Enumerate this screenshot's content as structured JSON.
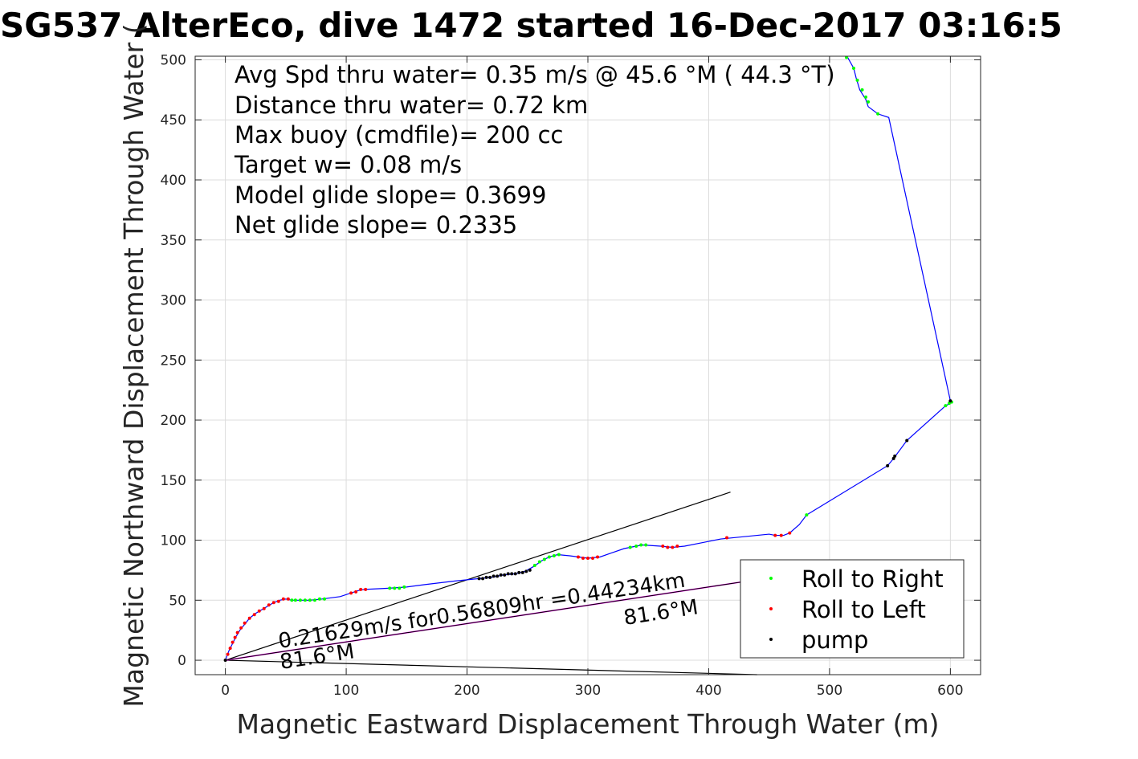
{
  "chart_data": {
    "type": "scatter",
    "title": "SG537 AlterEco, dive 1472 started 16-Dec-2017 03:16:5",
    "xlabel": "Magnetic Eastward Displacement Through Water (m)",
    "ylabel": "Magnetic Northward Displacement Through Water (",
    "xlim": [
      -25,
      625
    ],
    "ylim": [
      -12,
      503
    ],
    "xticks": [
      0,
      100,
      200,
      300,
      400,
      500,
      600
    ],
    "yticks": [
      0,
      50,
      100,
      150,
      200,
      250,
      300,
      350,
      400,
      450,
      500
    ],
    "grid": true,
    "legend_position": "lower-right",
    "annotations": [
      "Avg Spd thru water=  0.35 m/s @  45.6 °M ( 44.3 °T)",
      "Distance thru water=  0.72 km",
      "Max buoy (cmdfile)= 200 cc",
      "Target w= 0.08 m/s",
      "Model glide slope= 0.3699",
      "Net glide slope= 0.2335"
    ],
    "vector_label": "0.21629m/s for0.56809hr =0.44234km",
    "vector_heading_label_start": "81.6°M",
    "vector_heading_label_end": "81.6°M",
    "track": {
      "name": "track",
      "color": "#0000ff",
      "points": [
        [
          0,
          0
        ],
        [
          3,
          8
        ],
        [
          6,
          14
        ],
        [
          9,
          20
        ],
        [
          12,
          25
        ],
        [
          16,
          30
        ],
        [
          20,
          35
        ],
        [
          25,
          39
        ],
        [
          30,
          42
        ],
        [
          35,
          45
        ],
        [
          40,
          48
        ],
        [
          45,
          50
        ],
        [
          50,
          51
        ],
        [
          55,
          50
        ],
        [
          62,
          50
        ],
        [
          70,
          50
        ],
        [
          80,
          51
        ],
        [
          95,
          53
        ],
        [
          110,
          58
        ],
        [
          115,
          59
        ],
        [
          135,
          60
        ],
        [
          150,
          61
        ],
        [
          165,
          63
        ],
        [
          190,
          66
        ],
        [
          210,
          68
        ],
        [
          220,
          69
        ],
        [
          230,
          71
        ],
        [
          240,
          72
        ],
        [
          248,
          74
        ],
        [
          255,
          78
        ],
        [
          262,
          83
        ],
        [
          268,
          86
        ],
        [
          275,
          88
        ],
        [
          285,
          87
        ],
        [
          300,
          85
        ],
        [
          310,
          86
        ],
        [
          330,
          93
        ],
        [
          345,
          96
        ],
        [
          360,
          95
        ],
        [
          370,
          94
        ],
        [
          380,
          95
        ],
        [
          395,
          98
        ],
        [
          410,
          101
        ],
        [
          420,
          102
        ],
        [
          440,
          104
        ],
        [
          450,
          105
        ],
        [
          455,
          104
        ],
        [
          462,
          104
        ],
        [
          467,
          106
        ],
        [
          475,
          113
        ],
        [
          481,
          121
        ],
        [
          548,
          162
        ],
        [
          553,
          168
        ],
        [
          564,
          183
        ],
        [
          595,
          211
        ],
        [
          601,
          215
        ],
        [
          600,
          216
        ],
        [
          549,
          452
        ],
        [
          540,
          455
        ],
        [
          532,
          461
        ],
        [
          530,
          467
        ],
        [
          525,
          475
        ],
        [
          522,
          485
        ],
        [
          520,
          493
        ],
        [
          515,
          502
        ],
        [
          514,
          503
        ]
      ]
    },
    "commanded_vector": {
      "color": "#ff00ff",
      "x1": 0,
      "y1": 0,
      "x2": 426,
      "y2": 65
    },
    "actual_vector": {
      "color": "#000000",
      "x1": 0,
      "y1": 0,
      "x2": 426,
      "y2": 65
    },
    "upper_line": {
      "color": "#000000",
      "x1": 0,
      "y1": 0,
      "x2": 418,
      "y2": 140
    },
    "lower_line": {
      "color": "#000000",
      "x1": 0,
      "y1": 0,
      "x2": 440,
      "y2": -12
    },
    "series": [
      {
        "name": "Roll to Right",
        "color": "#00ff00",
        "points": [
          [
            55,
            50
          ],
          [
            58,
            50
          ],
          [
            62,
            50
          ],
          [
            66,
            50
          ],
          [
            70,
            50
          ],
          [
            74,
            50
          ],
          [
            78,
            51
          ],
          [
            82,
            51
          ],
          [
            136,
            60
          ],
          [
            140,
            60
          ],
          [
            144,
            60
          ],
          [
            148,
            61
          ],
          [
            256,
            79
          ],
          [
            260,
            82
          ],
          [
            264,
            84
          ],
          [
            268,
            86
          ],
          [
            272,
            87
          ],
          [
            276,
            88
          ],
          [
            335,
            94
          ],
          [
            340,
            95
          ],
          [
            344,
            96
          ],
          [
            348,
            96
          ],
          [
            481,
            121
          ],
          [
            596,
            212
          ],
          [
            599,
            214
          ],
          [
            601,
            215
          ],
          [
            514,
            502
          ],
          [
            520,
            493
          ],
          [
            523,
            483
          ],
          [
            527,
            475
          ],
          [
            530,
            469
          ],
          [
            532,
            465
          ],
          [
            540,
            455
          ]
        ]
      },
      {
        "name": "Roll to Left",
        "color": "#ff0000",
        "points": [
          [
            2,
            5
          ],
          [
            4,
            10
          ],
          [
            6,
            15
          ],
          [
            8,
            19
          ],
          [
            10,
            23
          ],
          [
            13,
            27
          ],
          [
            16,
            31
          ],
          [
            20,
            35
          ],
          [
            24,
            38
          ],
          [
            28,
            41
          ],
          [
            32,
            43
          ],
          [
            36,
            46
          ],
          [
            40,
            48
          ],
          [
            44,
            49
          ],
          [
            48,
            51
          ],
          [
            52,
            51
          ],
          [
            104,
            56
          ],
          [
            108,
            57
          ],
          [
            112,
            59
          ],
          [
            116,
            59
          ],
          [
            292,
            86
          ],
          [
            296,
            85
          ],
          [
            300,
            85
          ],
          [
            304,
            85
          ],
          [
            308,
            86
          ],
          [
            362,
            95
          ],
          [
            366,
            94
          ],
          [
            370,
            94
          ],
          [
            374,
            95
          ],
          [
            415,
            102
          ],
          [
            455,
            104
          ],
          [
            460,
            104
          ],
          [
            467,
            106
          ]
        ]
      },
      {
        "name": "pump",
        "color": "#000000",
        "points": [
          [
            210,
            68
          ],
          [
            213,
            68
          ],
          [
            216,
            69
          ],
          [
            219,
            69
          ],
          [
            222,
            70
          ],
          [
            225,
            70
          ],
          [
            228,
            71
          ],
          [
            231,
            71
          ],
          [
            234,
            72
          ],
          [
            237,
            72
          ],
          [
            240,
            72
          ],
          [
            243,
            73
          ],
          [
            246,
            73
          ],
          [
            249,
            74
          ],
          [
            252,
            75
          ],
          [
            548,
            162
          ],
          [
            553,
            168
          ],
          [
            554,
            170
          ],
          [
            564,
            183
          ],
          [
            600,
            216
          ],
          [
            0,
            0
          ]
        ]
      }
    ]
  }
}
